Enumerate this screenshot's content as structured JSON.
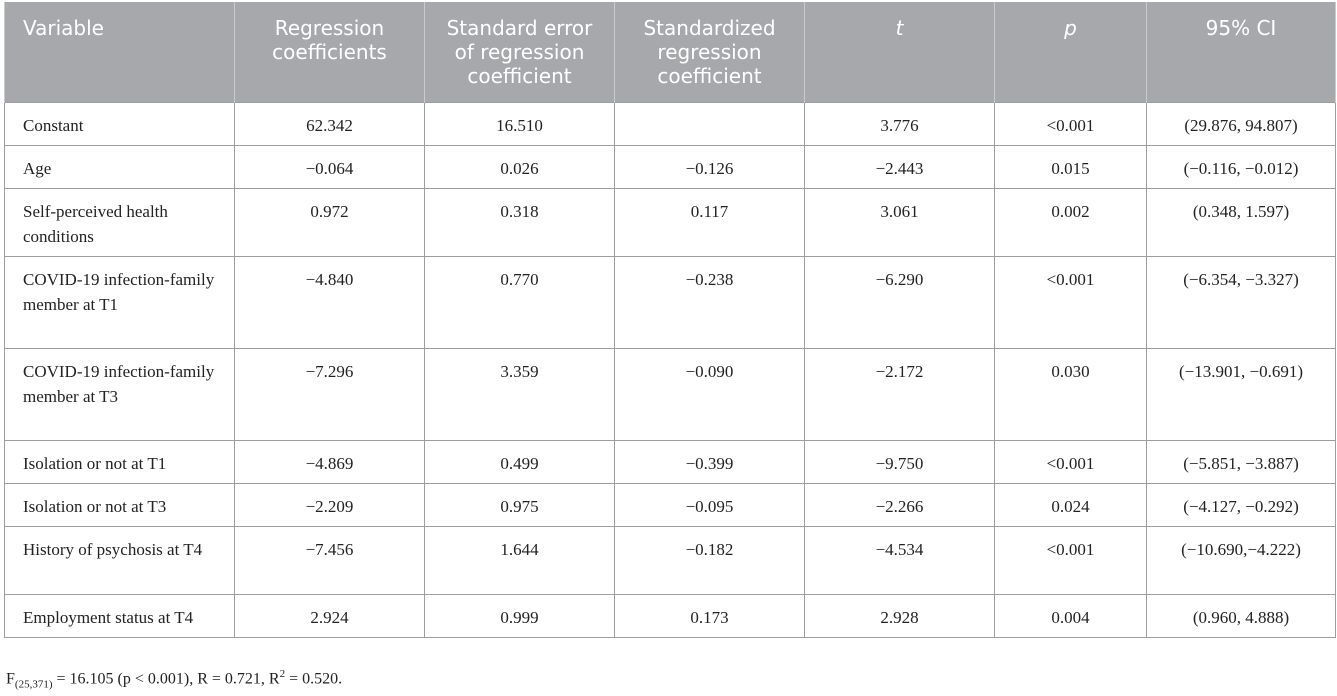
{
  "table": {
    "headers": [
      "Variable",
      "Regression coefficients",
      "Standard error of regression coefficient",
      "Standardized regression coefficient",
      "t",
      "p",
      "95% CI"
    ],
    "rows": [
      [
        "Constant",
        "62.342",
        "16.510",
        "",
        "3.776",
        "<0.001",
        "(29.876, 94.807)"
      ],
      [
        "Age",
        "−0.064",
        "0.026",
        "−0.126",
        "−2.443",
        "0.015",
        "(−0.116, −0.012)"
      ],
      [
        "Self-perceived health conditions",
        "0.972",
        "0.318",
        "0.117",
        "3.061",
        "0.002",
        "(0.348, 1.597)"
      ],
      [
        "COVID-19 infection-family member at T1",
        "−4.840",
        "0.770",
        "−0.238",
        "−6.290",
        "<0.001",
        "(−6.354, −3.327)"
      ],
      [
        "COVID-19 infection-family member at T3",
        "−7.296",
        "3.359",
        "−0.090",
        "−2.172",
        "0.030",
        "(−13.901, −0.691)"
      ],
      [
        "Isolation or not at T1",
        "−4.869",
        "0.499",
        "−0.399",
        "−9.750",
        "<0.001",
        "(−5.851, −3.887)"
      ],
      [
        "Isolation or not at T3",
        "−2.209",
        "0.975",
        "−0.095",
        "−2.266",
        "0.024",
        "(−4.127, −0.292)"
      ],
      [
        "History of psychosis at T4",
        "−7.456",
        "1.644",
        "−0.182",
        "−4.534",
        "<0.001",
        "(−10.690,−4.222)"
      ],
      [
        "Employment status at T4",
        "2.924",
        "0.999",
        "0.173",
        "2.928",
        "0.004",
        "(0.960, 4.888)"
      ]
    ]
  },
  "footnote": {
    "f_label": "F",
    "f_sub": "(25,371)",
    "f_rest": " = 16.105 (p < 0.001), R = 0.721, R",
    "r2_sup": "2",
    "r2_rest": " = 0.520."
  },
  "colors": {
    "header_bg": "#a6a8ab",
    "header_text": "#ffffff",
    "border": "#9b9da0"
  }
}
